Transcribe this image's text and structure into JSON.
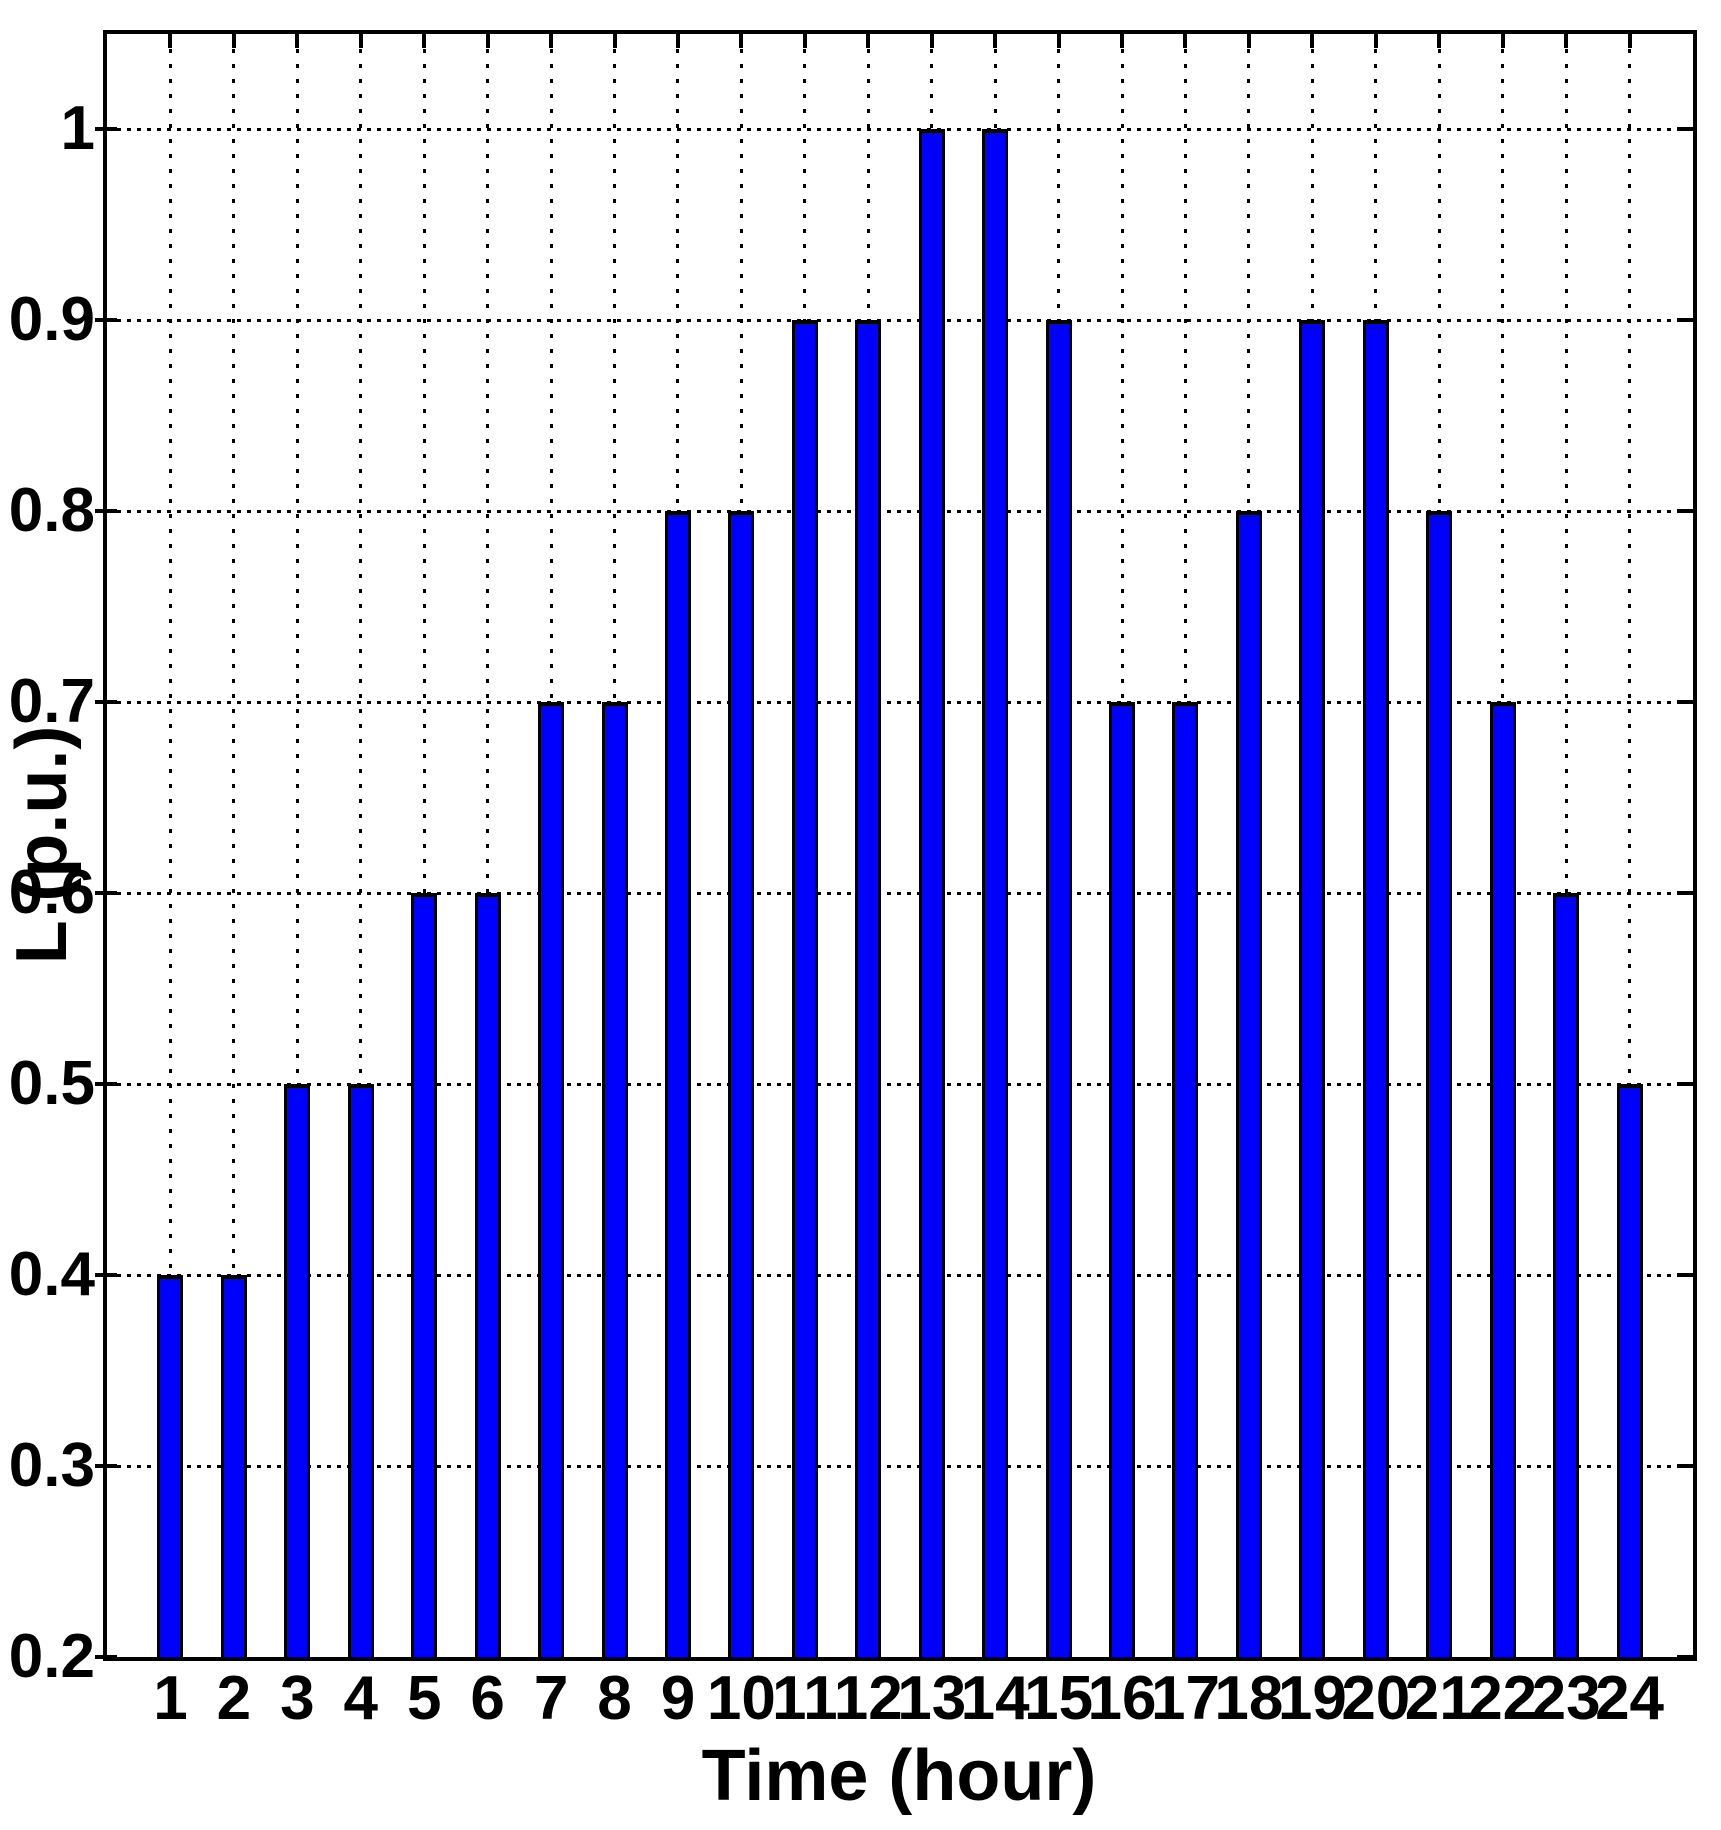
{
  "chart_data": {
    "type": "bar",
    "title": "",
    "xlabel": "Time (hour)",
    "ylabel": "L (p.u.)",
    "categories": [
      1,
      2,
      3,
      4,
      5,
      6,
      7,
      8,
      9,
      10,
      11,
      12,
      13,
      14,
      15,
      16,
      17,
      18,
      19,
      20,
      21,
      22,
      23,
      24
    ],
    "values": [
      0.4,
      0.4,
      0.5,
      0.5,
      0.6,
      0.6,
      0.7,
      0.7,
      0.8,
      0.8,
      0.9,
      0.9,
      1.0,
      1.0,
      0.9,
      0.7,
      0.7,
      0.8,
      0.9,
      0.9,
      0.8,
      0.7,
      0.6,
      0.5
    ],
    "xtick_labels": [
      "1",
      "2",
      "3",
      "4",
      "5",
      "6",
      "7",
      "8",
      "9",
      "10",
      "11",
      "12",
      "13",
      "14",
      "15",
      "16",
      "17",
      "18",
      "19",
      "20",
      "21",
      "22",
      "23",
      "24"
    ],
    "yticks": [
      {
        "v": 1.0,
        "label": "1"
      },
      {
        "v": 0.9,
        "label": "0.9"
      },
      {
        "v": 0.8,
        "label": "0.8"
      },
      {
        "v": 0.7,
        "label": "0.7"
      },
      {
        "v": 0.6,
        "label": "0.6"
      },
      {
        "v": 0.5,
        "label": "0.5"
      },
      {
        "v": 0.4,
        "label": "0.4"
      },
      {
        "v": 0.3,
        "label": "0.3"
      },
      {
        "v": 0.2,
        "label": "0.2"
      }
    ],
    "xlim": [
      0,
      25
    ],
    "ylim": [
      0.2,
      1.05
    ],
    "grid": "dotted both axes",
    "legend": "none",
    "bar_color": "#0000ff",
    "bar_edge_color": "#000000",
    "axis_color": "#000000",
    "background_color": "#ffffff",
    "bar_width_fraction": 0.4
  }
}
